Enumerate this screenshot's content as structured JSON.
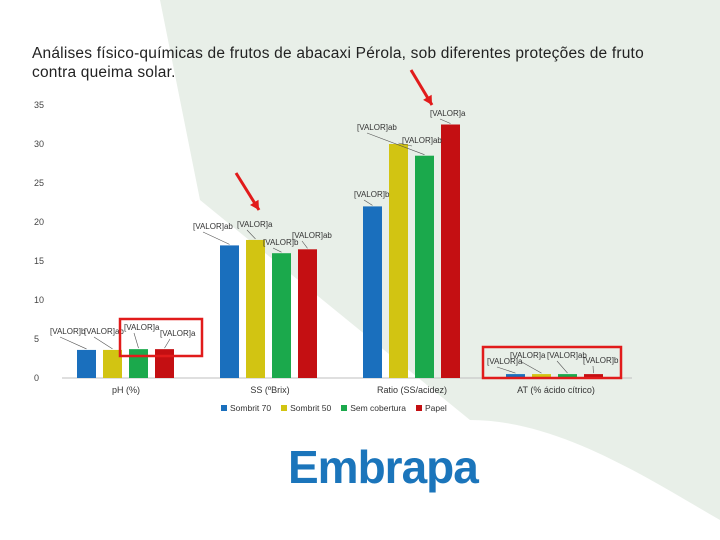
{
  "title": "Análises físico-químicas de frutos de abacaxi Pérola,  sob diferentes proteções de fruto contra queima solar.",
  "logo_text": "Embrapa",
  "colors": {
    "Sombrit 70": "#1a6fbd",
    "Sombrit 50": "#d2c412",
    "Sem cobertura": "#1ba94c",
    "Papel": "#c40f12",
    "highlight": "#e11b1b",
    "logo": "#1b75bb",
    "background_shape": "#e8efe8"
  },
  "chart_data": {
    "type": "bar",
    "title": "",
    "xlabel": "",
    "ylabel": "",
    "ylim": [
      0,
      35
    ],
    "yticks": [
      0,
      5,
      10,
      15,
      20,
      25,
      30,
      35
    ],
    "grid": false,
    "legend_position": "bottom",
    "categories": [
      "pH (%)",
      "SS (ºBrix)",
      "Ratio (SS/acidez)",
      "AT (% ácido cítrico)"
    ],
    "series": [
      {
        "name": "Sombrit 70",
        "values": [
          3.6,
          17.0,
          22.0,
          0.5
        ],
        "labels": [
          "[VALOR]b",
          "[VALOR]ab",
          "[VALOR]b",
          "[VALOR]a"
        ]
      },
      {
        "name": "Sombrit 50",
        "values": [
          3.6,
          17.7,
          30.0,
          0.5
        ],
        "labels": [
          "[VALOR]ab",
          "[VALOR]a",
          "[VALOR]ab",
          "[VALOR]a"
        ]
      },
      {
        "name": "Sem cobertura",
        "values": [
          3.7,
          16.0,
          28.5,
          0.5
        ],
        "labels": [
          "[VALOR]a",
          "[VALOR]b",
          "[VALOR]ab",
          "[VALOR]ab"
        ]
      },
      {
        "name": "Papel",
        "values": [
          3.7,
          16.5,
          32.5,
          0.5
        ],
        "labels": [
          "[VALOR]a",
          "[VALOR]ab",
          "[VALOR]a",
          "[VALOR]b"
        ]
      }
    ]
  }
}
